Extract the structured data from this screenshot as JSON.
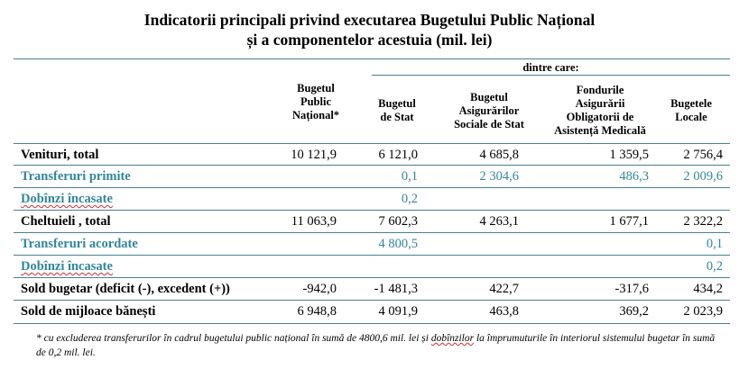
{
  "title": {
    "line1": "Indicatorii principali privind executarea Bugetului Public Național",
    "line2": "și a componentelor acestuia (mil. lei)"
  },
  "header": {
    "group": "dintre care:",
    "col1": [
      "Bugetul",
      "Public",
      "Național*"
    ],
    "col2": [
      "Bugetul",
      "de Stat"
    ],
    "col3": [
      "Bugetul",
      "Asigurărilor",
      "Sociale de Stat"
    ],
    "col4": [
      "Fondurile",
      "Asigurării",
      "Obligatorii de",
      "Asistență Medicală"
    ],
    "col5": [
      "Bugetele",
      "Locale"
    ]
  },
  "rows": [
    {
      "label": "Venituri, total",
      "v": [
        "10 121,9",
        "6 121,0",
        "4 685,8",
        "1 359,5",
        "2 756,4"
      ]
    },
    {
      "label": "Transferuri primite",
      "v": [
        "",
        "0,1",
        "2 304,6",
        "486,3",
        "2 009,6"
      ]
    },
    {
      "label": "Dobînzi încasate",
      "v": [
        "",
        "0,2",
        "",
        "",
        ""
      ]
    },
    {
      "label": "Cheltuieli , total",
      "v": [
        "11 063,9",
        "7 602,3",
        "4 263,1",
        "1 677,1",
        "2 322,2"
      ]
    },
    {
      "label": "Transferuri acordate",
      "v": [
        "",
        "4 800,5",
        "",
        "",
        "0,1"
      ]
    },
    {
      "label": "Dobînzi încasate",
      "v": [
        "",
        "",
        "",
        "",
        "0,2"
      ]
    },
    {
      "label": "Sold bugetar (deficit (-), excedent (+))",
      "v": [
        "-942,0",
        "-1 481,3",
        "422,7",
        "-317,6",
        "434,2"
      ]
    },
    {
      "label": "Sold de mijloace bănești",
      "v": [
        "6 948,8",
        "4 091,9",
        "463,8",
        "369,2",
        "2 023,9"
      ]
    }
  ],
  "footnote": {
    "p1": "* cu excluderea transferurilor în cadrul bugetului public național în sumă de  4800,6 mil. lei și ",
    "w1": "dobînzilor",
    "p2": " la împrumuturile în interiorul sistemului bugetar în sumă de 0,2 mil. lei."
  },
  "colors": {
    "rule": "#4a7f8c",
    "teal": "#31869b"
  }
}
